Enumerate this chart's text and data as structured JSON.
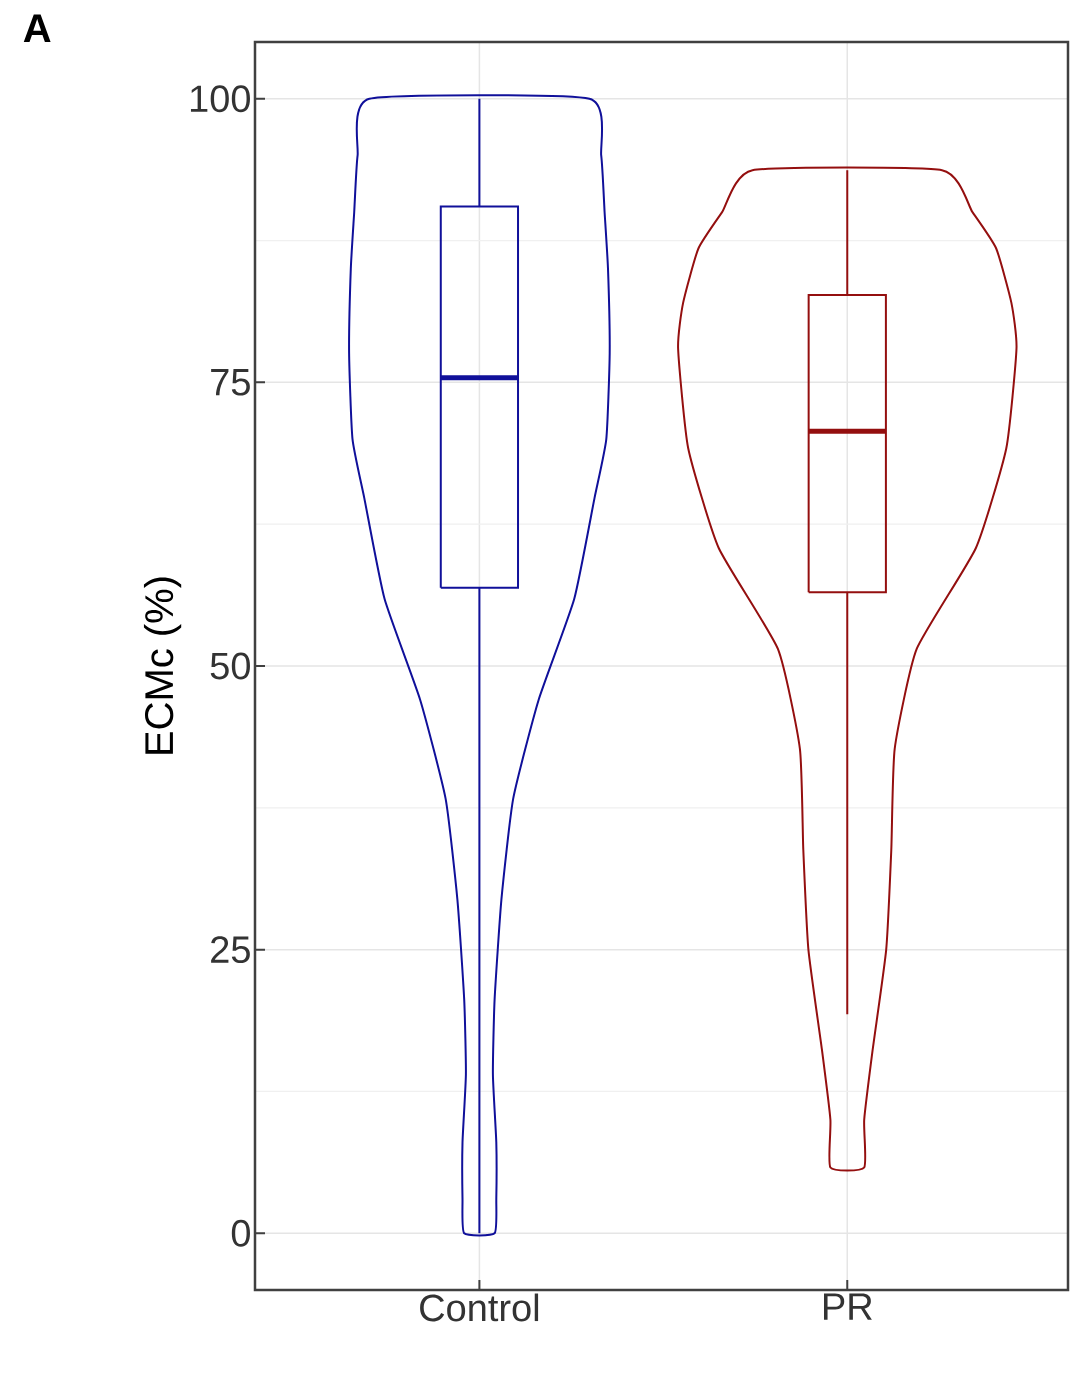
{
  "chart_data": {
    "type": "box",
    "title": "A",
    "ylabel": "ECMc (%)",
    "categories": [
      "Control",
      "PR"
    ],
    "colors": [
      "#10109a",
      "#940f0f"
    ],
    "boxes": [
      {
        "low": 0,
        "q1": 56.9,
        "median": 75.4,
        "q3": 90.5,
        "high": 100
      },
      {
        "low": 19.3,
        "q1": 56.5,
        "median": 70.7,
        "q3": 82.7,
        "high": 93.7
      }
    ],
    "ylim": [
      -5,
      105
    ],
    "yticks": [
      0,
      25,
      50,
      75,
      100
    ],
    "grid": true
  }
}
